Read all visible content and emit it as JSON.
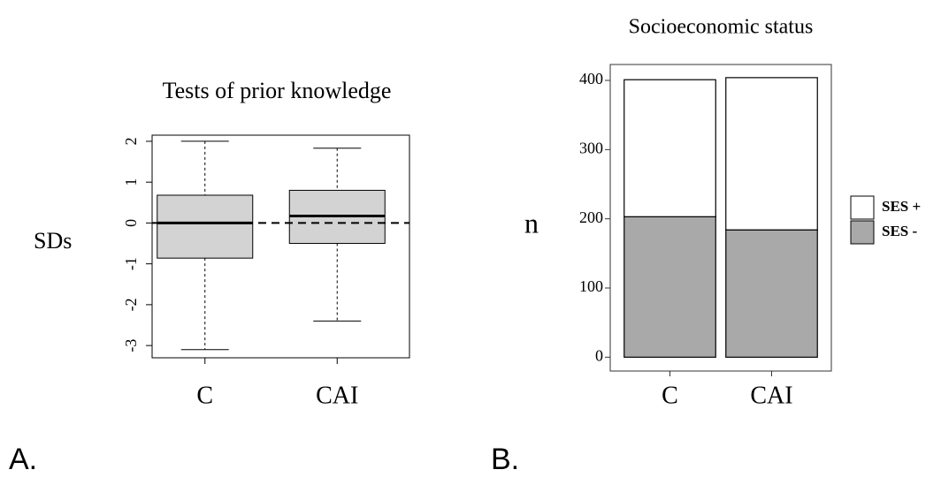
{
  "chart_data": [
    {
      "type": "box",
      "title": "Tests of prior knowledge",
      "ylabel": "SDs",
      "label": "A.",
      "categories": [
        "C",
        "CAI"
      ],
      "stats": [
        {
          "min": -3.1,
          "q1": -0.86,
          "median": 0,
          "q3": 0.68,
          "max": 2.0
        },
        {
          "min": -2.4,
          "q1": -0.5,
          "median": 0.17,
          "q3": 0.8,
          "max": 1.83
        }
      ],
      "color": "#d3d3d3",
      "hline": 0,
      "ylim": [
        -3.3,
        2.15
      ],
      "yticks": [
        -3,
        -2,
        -1,
        0,
        1,
        2
      ]
    },
    {
      "type": "stacked_bar",
      "title": "Socioeconomic status",
      "ylabel": "n",
      "label": "B.",
      "categories": [
        "C",
        "CAI"
      ],
      "series": [
        {
          "name": "SES +",
          "color": "#ffffff",
          "values": [
            198,
            220
          ]
        },
        {
          "name": "SES -",
          "color": "#a9a9a9",
          "values": [
            203,
            184
          ]
        }
      ],
      "ylim": [
        -20,
        423
      ],
      "yticks": [
        0,
        100,
        200,
        300,
        400
      ],
      "legend": "right"
    }
  ]
}
